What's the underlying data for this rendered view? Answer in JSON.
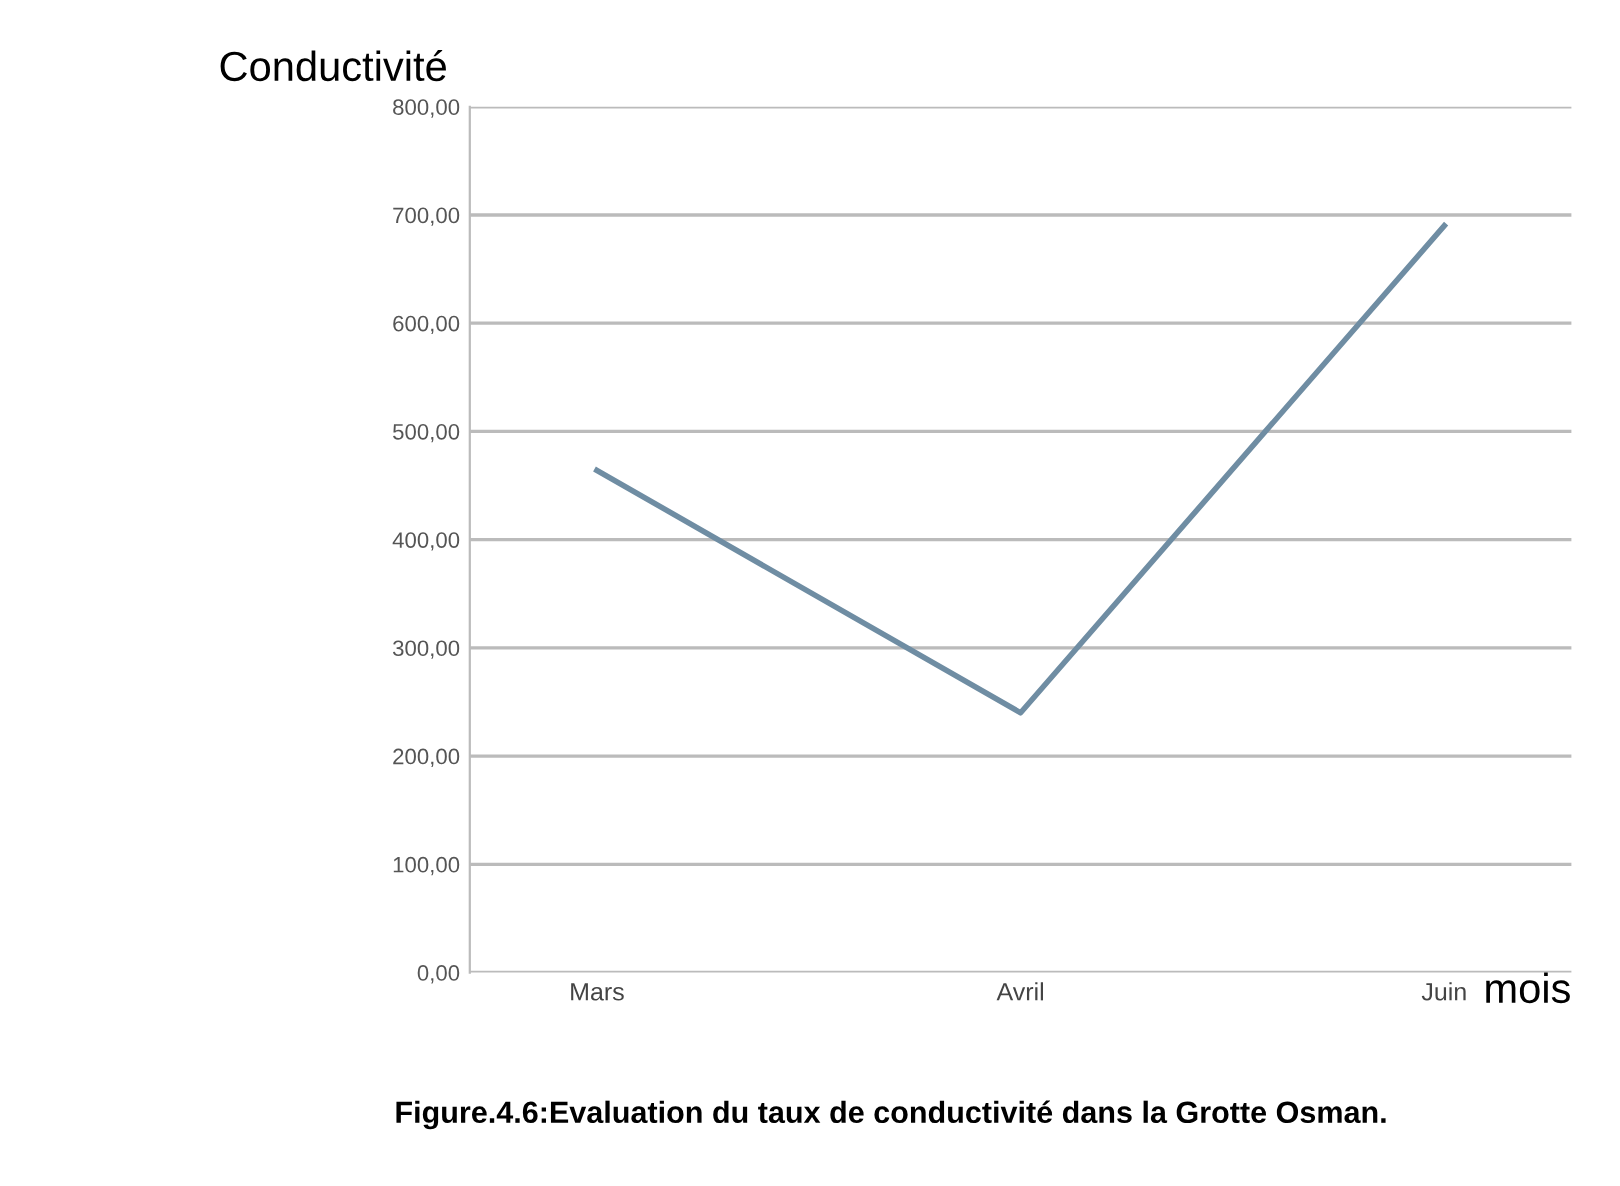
{
  "chart_data": {
    "type": "line",
    "title": "Figure.4.6:Evaluation du taux de conductivité dans la Grotte Osman.",
    "ylabel": "Conductivité",
    "xlabel": "mois",
    "categories": [
      "Mars",
      "Avril",
      "Juin"
    ],
    "series": [
      {
        "color": "#6f8da3",
        "values": [
          464,
          240,
          690
        ]
      }
    ],
    "ylim": [
      0,
      800
    ],
    "yticks": [
      {
        "value": 0,
        "label": "0,00"
      },
      {
        "value": 100,
        "label": "100,00"
      },
      {
        "value": 200,
        "label": "200,00"
      },
      {
        "value": 300,
        "label": "300,00"
      },
      {
        "value": 400,
        "label": "400,00"
      },
      {
        "value": 500,
        "label": "500,00"
      },
      {
        "value": 600,
        "label": "600,00"
      },
      {
        "value": 700,
        "label": "700,00"
      },
      {
        "value": 800,
        "label": "800,00"
      }
    ],
    "grid": "y",
    "marker": "none",
    "line_style": "solid",
    "legend": false
  }
}
